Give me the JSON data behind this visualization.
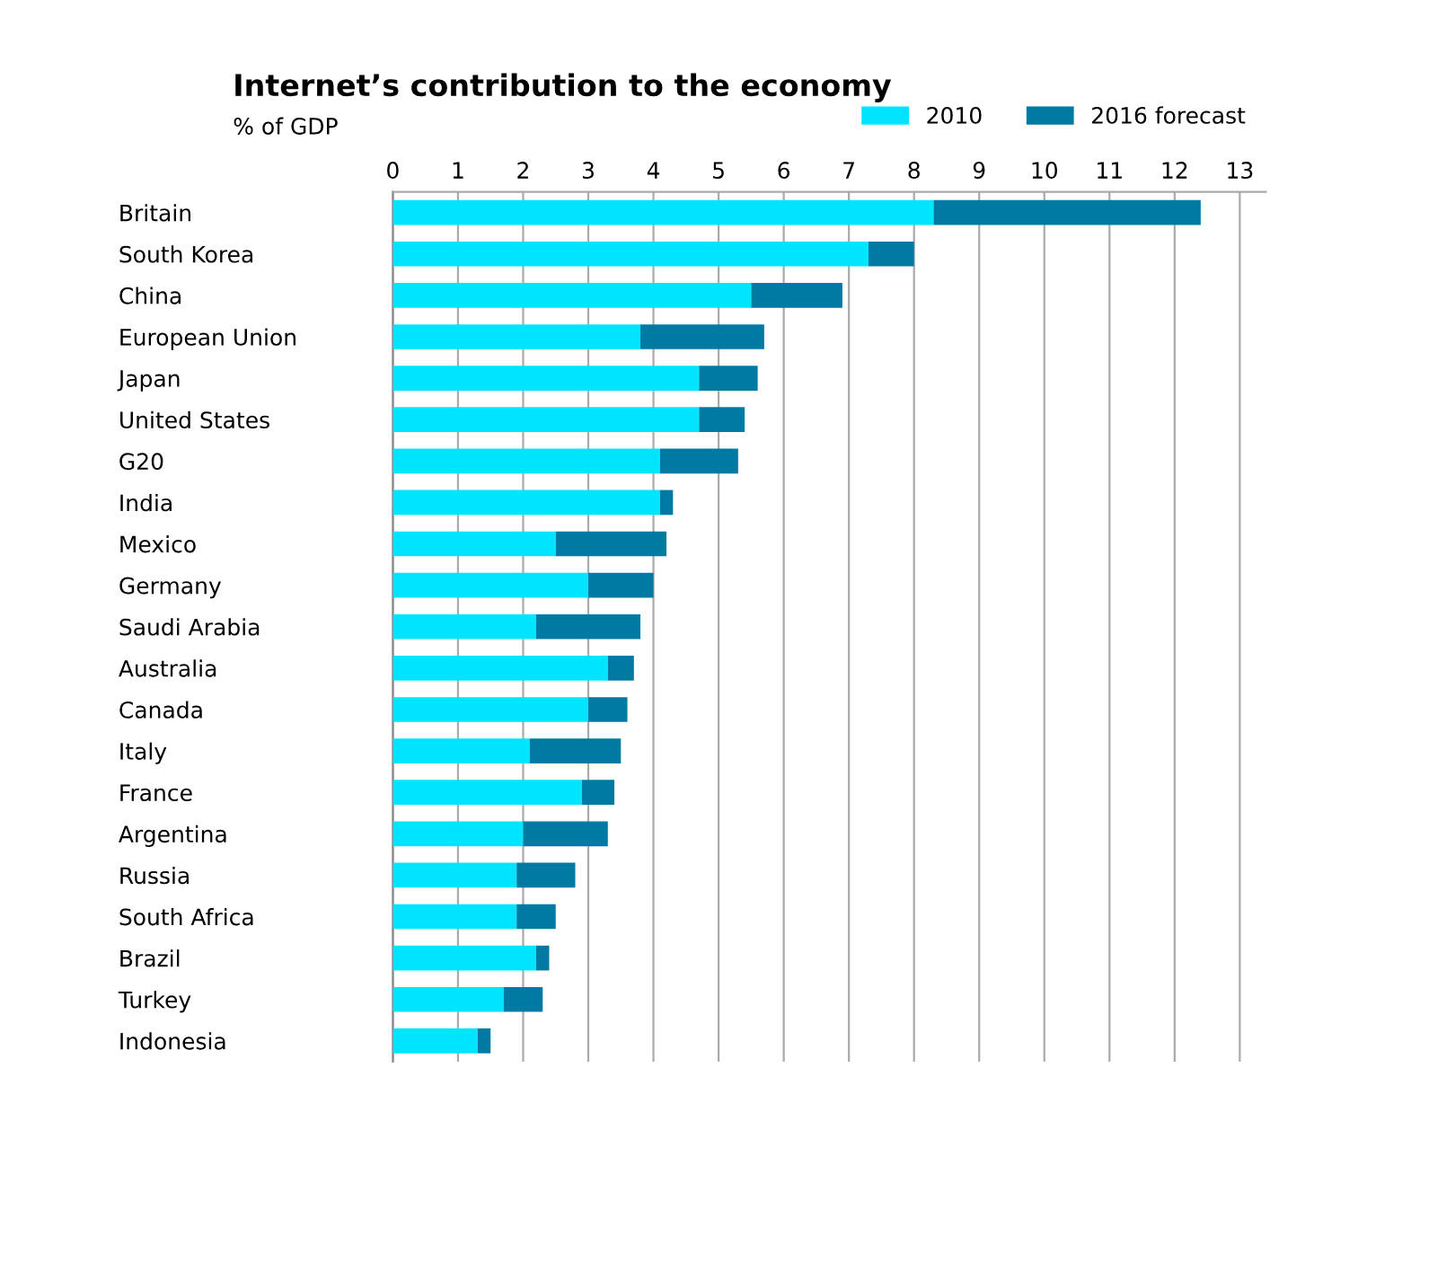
{
  "chart_data": {
    "type": "bar",
    "title": "Internet’s contribution to the economy",
    "subtitle": "% of GDP",
    "orientation": "horizontal",
    "stacked": true,
    "categories": [
      "Britain",
      "South Korea",
      "China",
      "European Union",
      "Japan",
      "United States",
      "G20",
      "India",
      "Mexico",
      "Germany",
      "Saudi Arabia",
      "Australia",
      "Canada",
      "Italy",
      "France",
      "Argentina",
      "Russia",
      "South Africa",
      "Brazil",
      "Turkey",
      "Indonesia"
    ],
    "series": [
      {
        "name": "2010",
        "color": "#00e5ff",
        "values": [
          8.3,
          7.3,
          5.5,
          3.8,
          4.7,
          4.7,
          4.1,
          4.1,
          2.5,
          3.0,
          2.2,
          3.3,
          3.0,
          2.1,
          2.9,
          2.0,
          1.9,
          1.9,
          2.2,
          1.7,
          1.3
        ]
      },
      {
        "name": "2016 forecast",
        "color": "#0079a3",
        "values": [
          4.1,
          0.7,
          1.4,
          1.9,
          0.9,
          0.7,
          1.2,
          0.2,
          1.7,
          1.0,
          1.6,
          0.4,
          0.6,
          1.4,
          0.5,
          1.3,
          0.9,
          0.6,
          0.2,
          0.6,
          0.2
        ]
      }
    ],
    "xlim": [
      0,
      13.4
    ],
    "xticks": [
      0,
      1,
      2,
      3,
      4,
      5,
      6,
      7,
      8,
      9,
      10,
      11,
      12,
      13
    ],
    "grid": "x",
    "legend": "top right"
  }
}
